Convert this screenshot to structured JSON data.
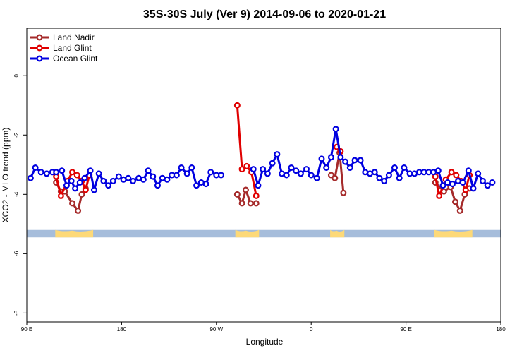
{
  "chart_data": {
    "type": "line",
    "title": "35S-30S July (Ver 9)   2014-09-06 to 2020-01-21",
    "xlabel": "Longitude",
    "ylabel": "XCO2 - MLO trend (ppm)",
    "xlim": [
      0,
      500
    ],
    "ylim": [
      -8.3,
      1.6
    ],
    "x_ticks": [
      {
        "value": 0,
        "label": "90 E"
      },
      {
        "value": 100,
        "label": "180"
      },
      {
        "value": 200,
        "label": "90 W"
      },
      {
        "value": 300,
        "label": "0"
      },
      {
        "value": 400,
        "label": "90 E"
      },
      {
        "value": 500,
        "label": "180"
      }
    ],
    "y_ticks": [
      {
        "value": 0,
        "label": "0"
      },
      {
        "value": -2,
        "label": "-2"
      },
      {
        "value": -4,
        "label": "-4"
      },
      {
        "value": -6,
        "label": "-6"
      },
      {
        "value": -8,
        "label": "-8"
      }
    ],
    "legend": {
      "placement": "top-left"
    },
    "series": [
      {
        "name": "Land Nadir",
        "color": "#a52a2a",
        "segments": [
          [
            [
              31,
              -3.6
            ],
            [
              36,
              -3.9
            ],
            [
              40,
              -3.9
            ],
            [
              48,
              -4.3
            ],
            [
              54,
              -4.55
            ],
            [
              58,
              -4.0
            ],
            [
              62,
              -3.8
            ]
          ],
          [
            [
              222,
              -4.0
            ],
            [
              227,
              -4.3
            ],
            [
              231,
              -3.85
            ],
            [
              236,
              -4.3
            ],
            [
              242,
              -4.3
            ]
          ],
          [
            [
              321,
              -3.35
            ],
            [
              325,
              -3.45
            ],
            [
              330,
              -2.6
            ],
            [
              334,
              -3.95
            ]
          ],
          [
            [
              431,
              -3.6
            ],
            [
              440,
              -3.9
            ],
            [
              447,
              -3.75
            ],
            [
              452,
              -4.25
            ],
            [
              457,
              -4.55
            ],
            [
              462,
              -4.0
            ],
            [
              467,
              -3.8
            ]
          ]
        ]
      },
      {
        "name": "Land Glint",
        "color": "#e00000",
        "segments": [
          [
            [
              31,
              -3.4
            ],
            [
              36,
              -4.05
            ],
            [
              43,
              -3.55
            ],
            [
              48,
              -3.25
            ],
            [
              53,
              -3.35
            ],
            [
              58,
              -3.55
            ],
            [
              62,
              -3.85
            ],
            [
              66,
              -3.35
            ]
          ],
          [
            [
              222,
              -1.0
            ],
            [
              227,
              -3.15
            ],
            [
              232,
              -3.05
            ],
            [
              237,
              -3.25
            ],
            [
              242,
              -4.05
            ]
          ],
          [
            [
              327,
              -2.4
            ],
            [
              331,
              -2.55
            ]
          ],
          [
            [
              431,
              -3.4
            ],
            [
              435,
              -4.05
            ],
            [
              442,
              -3.5
            ],
            [
              448,
              -3.25
            ],
            [
              453,
              -3.35
            ],
            [
              458,
              -3.55
            ],
            [
              463,
              -3.85
            ],
            [
              467,
              -3.35
            ]
          ]
        ]
      },
      {
        "name": "Ocean Glint",
        "color": "#0000e0",
        "segments": [
          [
            [
              4,
              -3.45
            ],
            [
              9,
              -3.1
            ],
            [
              15,
              -3.25
            ],
            [
              21,
              -3.3
            ],
            [
              27,
              -3.25
            ],
            [
              31,
              -3.25
            ],
            [
              37,
              -3.2
            ],
            [
              42,
              -3.7
            ],
            [
              47,
              -3.55
            ],
            [
              51,
              -3.8
            ],
            [
              56,
              -3.6
            ],
            [
              61,
              -3.45
            ],
            [
              67,
              -3.2
            ],
            [
              71,
              -3.85
            ],
            [
              76,
              -3.3
            ],
            [
              81,
              -3.55
            ],
            [
              86,
              -3.7
            ],
            [
              91,
              -3.55
            ],
            [
              97,
              -3.4
            ],
            [
              102,
              -3.5
            ],
            [
              107,
              -3.45
            ],
            [
              112,
              -3.55
            ],
            [
              118,
              -3.45
            ],
            [
              123,
              -3.5
            ],
            [
              128,
              -3.2
            ],
            [
              133,
              -3.4
            ],
            [
              138,
              -3.7
            ],
            [
              143,
              -3.45
            ],
            [
              148,
              -3.5
            ],
            [
              153,
              -3.35
            ],
            [
              158,
              -3.35
            ],
            [
              163,
              -3.1
            ],
            [
              169,
              -3.3
            ],
            [
              174,
              -3.1
            ],
            [
              179,
              -3.7
            ],
            [
              184,
              -3.6
            ],
            [
              189,
              -3.65
            ],
            [
              194,
              -3.25
            ],
            [
              200,
              -3.35
            ],
            [
              205,
              -3.35
            ]
          ],
          [
            [
              239,
              -3.15
            ],
            [
              244,
              -3.7
            ],
            [
              249,
              -3.15
            ],
            [
              254,
              -3.3
            ],
            [
              259,
              -2.95
            ],
            [
              264,
              -2.65
            ],
            [
              269,
              -3.3
            ],
            [
              274,
              -3.35
            ],
            [
              279,
              -3.1
            ],
            [
              284,
              -3.2
            ],
            [
              289,
              -3.3
            ],
            [
              295,
              -3.15
            ],
            [
              300,
              -3.35
            ],
            [
              306,
              -3.45
            ],
            [
              311,
              -2.8
            ],
            [
              316,
              -3.1
            ],
            [
              321,
              -2.75
            ],
            [
              326,
              -1.8
            ],
            [
              331,
              -2.75
            ],
            [
              336,
              -2.9
            ],
            [
              341,
              -3.1
            ],
            [
              346,
              -2.85
            ],
            [
              352,
              -2.85
            ],
            [
              357,
              -3.25
            ],
            [
              362,
              -3.3
            ],
            [
              367,
              -3.25
            ],
            [
              372,
              -3.45
            ],
            [
              377,
              -3.55
            ],
            [
              382,
              -3.35
            ],
            [
              388,
              -3.1
            ],
            [
              393,
              -3.45
            ],
            [
              398,
              -3.1
            ],
            [
              404,
              -3.3
            ],
            [
              409,
              -3.3
            ],
            [
              414,
              -3.25
            ],
            [
              419,
              -3.25
            ],
            [
              424,
              -3.25
            ],
            [
              429,
              -3.25
            ],
            [
              434,
              -3.2
            ],
            [
              439,
              -3.7
            ],
            [
              444,
              -3.6
            ],
            [
              449,
              -3.65
            ],
            [
              455,
              -3.55
            ],
            [
              460,
              -3.6
            ],
            [
              466,
              -3.2
            ],
            [
              471,
              -3.8
            ],
            [
              476,
              -3.3
            ],
            [
              481,
              -3.55
            ],
            [
              486,
              -3.7
            ],
            [
              491,
              -3.6
            ]
          ]
        ]
      }
    ],
    "map_strip": {
      "y_top": -5.2,
      "y_bottom": -5.45,
      "ocean_color": "#a6bddb",
      "land_color": "#fdd978",
      "land_ranges": [
        [
          30,
          70
        ],
        [
          220,
          245
        ],
        [
          320,
          335
        ],
        [
          430,
          470
        ]
      ]
    }
  }
}
